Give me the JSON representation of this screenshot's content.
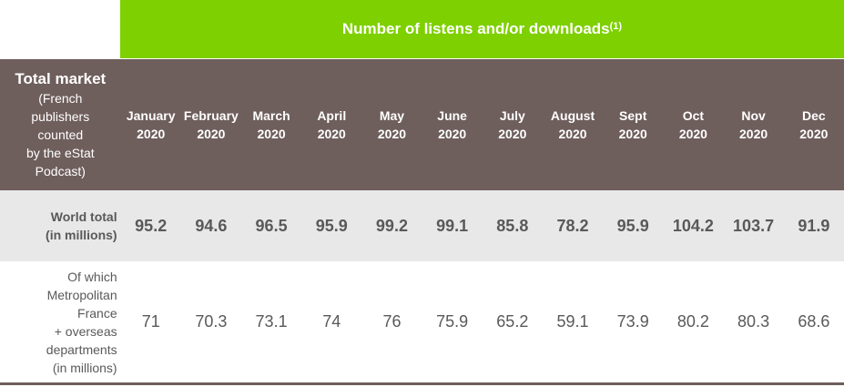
{
  "banner": {
    "title": "Number of listens and/or downloads",
    "footnote": "(1)"
  },
  "header": {
    "lead_title": "Total market",
    "lead_lines": [
      "(French",
      "publishers",
      "counted",
      "by the eStat",
      "Podcast)"
    ],
    "months": [
      {
        "month": "January",
        "year": "2020"
      },
      {
        "month": "February",
        "year": "2020"
      },
      {
        "month": "March",
        "year": "2020"
      },
      {
        "month": "April",
        "year": "2020"
      },
      {
        "month": "May",
        "year": "2020"
      },
      {
        "month": "June",
        "year": "2020"
      },
      {
        "month": "July",
        "year": "2020"
      },
      {
        "month": "August",
        "year": "2020"
      },
      {
        "month": "Sept",
        "year": "2020"
      },
      {
        "month": "Oct",
        "year": "2020"
      },
      {
        "month": "Nov",
        "year": "2020"
      },
      {
        "month": "Dec",
        "year": "2020"
      }
    ]
  },
  "rows": [
    {
      "label_lines": [
        "World total",
        "(in millions)"
      ],
      "values": [
        "95.2",
        "94.6",
        "96.5",
        "95.9",
        "99.2",
        "99.1",
        "85.8",
        "78.2",
        "95.9",
        "104.2",
        "103.7",
        "91.9"
      ]
    },
    {
      "label_lines": [
        "Of which",
        "Metropolitan",
        "France",
        "+ overseas",
        "departments",
        "(in millions)"
      ],
      "values": [
        "71",
        "70.3",
        "73.1",
        "74",
        "76",
        "75.9",
        "65.2",
        "59.1",
        "73.9",
        "80.2",
        "80.3",
        "68.6"
      ]
    }
  ],
  "colors": {
    "banner": "#7ed000",
    "header": "#6e5e5c",
    "world_row": "#e8e8e8",
    "text": "#595959"
  }
}
